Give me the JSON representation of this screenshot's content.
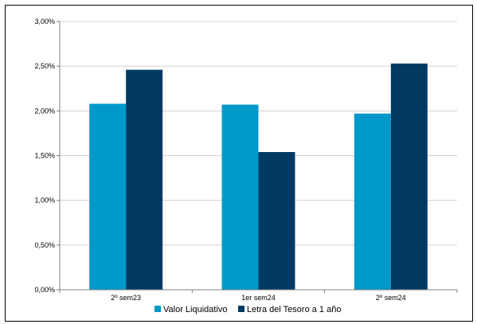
{
  "chart_data": {
    "type": "bar",
    "title": "",
    "xlabel": "",
    "ylabel": "",
    "categories": [
      "2º sem23",
      "1er sem24",
      "2º sem24"
    ],
    "series": [
      {
        "name": "Valor Liquidativo",
        "values": [
          2.08,
          2.07,
          1.97
        ],
        "color": "#0099c9"
      },
      {
        "name": "Letra del Tesoro a 1 año",
        "values": [
          2.46,
          1.54,
          2.53
        ],
        "color": "#003a63"
      }
    ],
    "ylim": [
      0,
      3.0
    ],
    "yticks": [
      0,
      0.5,
      1.0,
      1.5,
      2.0,
      2.5,
      3.0
    ],
    "ytick_labels": [
      "0,00%",
      "0,50%",
      "1,00%",
      "1,50%",
      "2,00%",
      "2,50%",
      "3,00%"
    ],
    "grid": true,
    "legend_position": "bottom"
  }
}
